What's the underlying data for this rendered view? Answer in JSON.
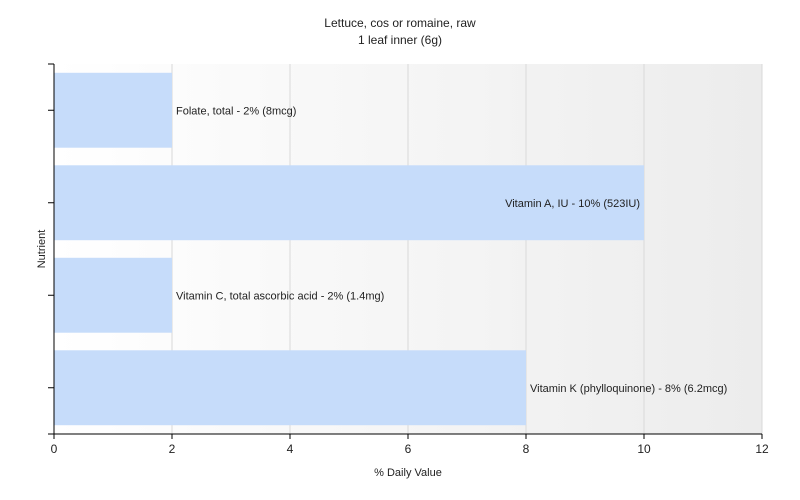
{
  "chart_data": {
    "type": "bar",
    "orientation": "horizontal",
    "title": "Lettuce, cos or romaine, raw",
    "subtitle": "1 leaf inner (6g)",
    "xlabel": "% Daily Value",
    "ylabel": "Nutrient",
    "xlim": [
      0,
      12
    ],
    "xticks": [
      0,
      2,
      4,
      6,
      8,
      10,
      12
    ],
    "grid": true,
    "bar_color": "#c6dcfa",
    "categories": [
      "Folate, total",
      "Vitamin A, IU",
      "Vitamin C, total ascorbic acid",
      "Vitamin K (phylloquinone)"
    ],
    "values": [
      2,
      10,
      2,
      8
    ],
    "data_labels": [
      "Folate, total - 2% (8mcg)",
      "Vitamin A, IU - 10% (523IU)",
      "Vitamin C, total ascorbic acid - 2% (1.4mg)",
      "Vitamin K (phylloquinone) - 8% (6.2mcg)"
    ]
  }
}
